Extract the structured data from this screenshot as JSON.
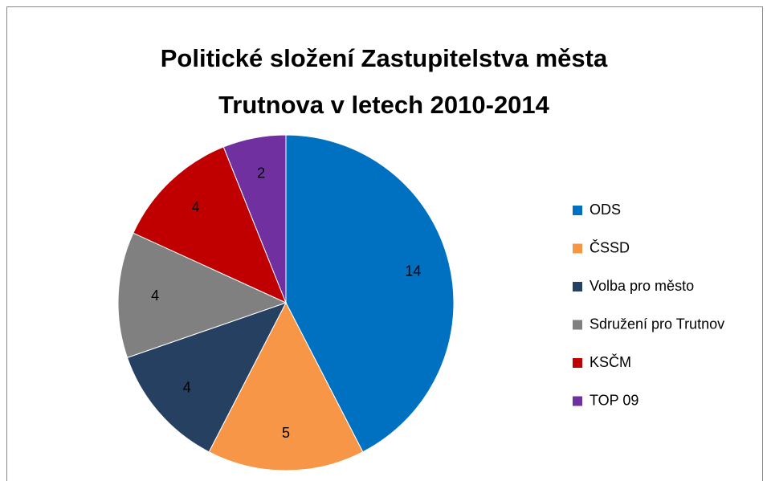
{
  "chart_data": {
    "type": "pie",
    "title": [
      "Politické složení Zastupitelstva města",
      "Trutnova v letech 2010-2014"
    ],
    "categories": [
      "ODS",
      "ČSSD",
      "Volba pro město",
      "Sdružení pro Trutnov",
      "KSČM",
      "TOP 09"
    ],
    "values": [
      14,
      5,
      4,
      4,
      4,
      2
    ],
    "colors": [
      "#0070c0",
      "#f79646",
      "#254061",
      "#808080",
      "#c00000",
      "#7030a0"
    ],
    "legend": "right"
  }
}
